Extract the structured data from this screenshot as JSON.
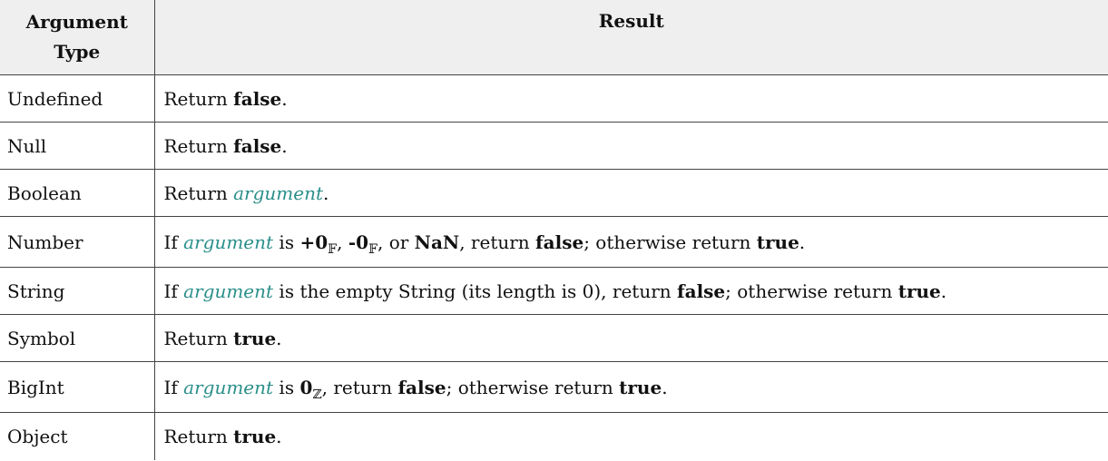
{
  "header": {
    "col1": "Argument Type",
    "col2": "Result"
  },
  "rows": [
    {
      "type": "Undefined",
      "result": {
        "return_word": "Return",
        "value": "false",
        "period": "."
      }
    },
    {
      "type": "Null",
      "result": {
        "return_word": "Return",
        "value": "false",
        "period": "."
      }
    },
    {
      "type": "Boolean",
      "result": {
        "return_word": "Return",
        "arg": "argument",
        "period": "."
      }
    },
    {
      "type": "Number",
      "result": {
        "if": "If",
        "arg": "argument",
        "is": "is",
        "v1": "+0",
        "sub_f": "𝔽",
        "comma1": ",",
        "v2": "-0",
        "comma2": ", or",
        "nan": "NaN",
        "ret": ", return",
        "false": "false",
        "other": "; otherwise return",
        "true": "true",
        "period": "."
      }
    },
    {
      "type": "String",
      "result": {
        "if": "If",
        "arg": "argument",
        "rest": "is the empty String (its length is 0), return",
        "false": "false",
        "other": "; otherwise return",
        "true": "true",
        "period": "."
      }
    },
    {
      "type": "Symbol",
      "result": {
        "return_word": "Return",
        "value": "true",
        "period": "."
      }
    },
    {
      "type": "BigInt",
      "result": {
        "if": "If",
        "arg": "argument",
        "is": "is",
        "v1": "0",
        "sub_z": "ℤ",
        "ret": ", return",
        "false": "false",
        "other": "; otherwise return",
        "true": "true",
        "period": "."
      }
    },
    {
      "type": "Object",
      "result": {
        "return_word": "Return",
        "value": "true",
        "period": "."
      }
    }
  ]
}
